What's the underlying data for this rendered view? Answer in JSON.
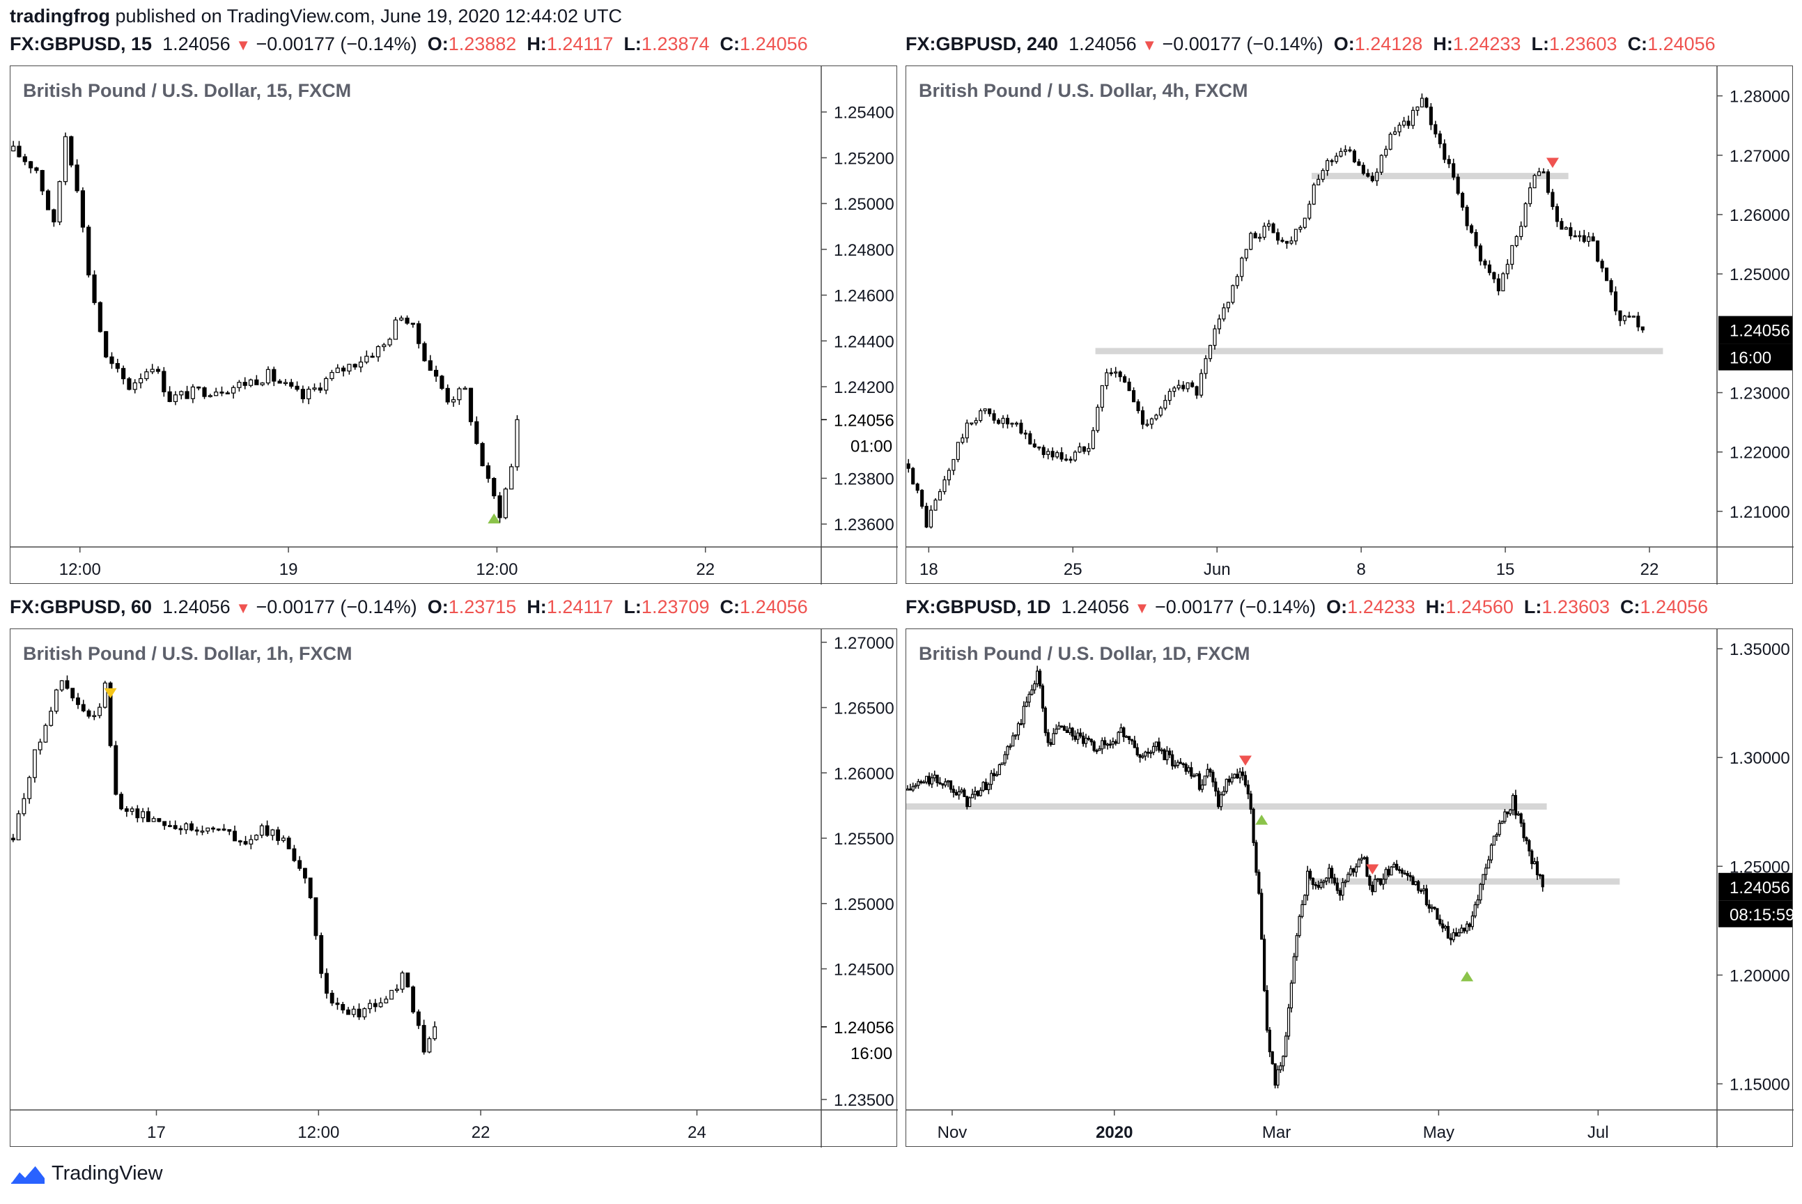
{
  "header": {
    "author": "tradingfrog",
    "published": "published on TradingView.com, June 19, 2020 12:44:02 UTC"
  },
  "footer": {
    "brand": "TradingView",
    "logo_icon": "tradingview-logo-icon"
  },
  "colors": {
    "bull": "#ffffff",
    "bear": "#000000",
    "wick": "#000000",
    "level": "#d6d6d6",
    "down_marker": "#ef5350",
    "up_marker": "#8bc34a",
    "neutral_marker": "#f5c518",
    "quote_red": "#ef5350"
  },
  "panels": [
    {
      "id": "p15",
      "quote": {
        "symbol": "FX:GBPUSD, 15",
        "last": "1.24056",
        "change": "−0.00177 (−0.14%)",
        "o_label": "O:",
        "o": "1.23882",
        "h_label": "H:",
        "h": "1.24117",
        "l_label": "L:",
        "l": "1.23874",
        "c_label": "C:",
        "c": "1.24056"
      },
      "title": "British Pound / U.S. Dollar, 15, FXCM",
      "price_label": "1.24056",
      "time_label": "01:00"
    },
    {
      "id": "p240",
      "quote": {
        "symbol": "FX:GBPUSD, 240",
        "last": "1.24056",
        "change": "−0.00177 (−0.14%)",
        "o_label": "O:",
        "o": "1.24128",
        "h_label": "H:",
        "h": "1.24233",
        "l_label": "L:",
        "l": "1.23603",
        "c_label": "C:",
        "c": "1.24056"
      },
      "title": "British Pound / U.S. Dollar, 4h, FXCM",
      "price_label": "1.24056",
      "time_label": "16:00"
    },
    {
      "id": "p60",
      "quote": {
        "symbol": "FX:GBPUSD, 60",
        "last": "1.24056",
        "change": "−0.00177 (−0.14%)",
        "o_label": "O:",
        "o": "1.23715",
        "h_label": "H:",
        "h": "1.24117",
        "l_label": "L:",
        "l": "1.23709",
        "c_label": "C:",
        "c": "1.24056"
      },
      "title": "British Pound / U.S. Dollar, 1h, FXCM",
      "price_label": "1.24056",
      "time_label": "16:00"
    },
    {
      "id": "p1d",
      "quote": {
        "symbol": "FX:GBPUSD, 1D",
        "last": "1.24056",
        "change": "−0.00177 (−0.14%)",
        "o_label": "O:",
        "o": "1.24233",
        "h_label": "H:",
        "h": "1.24560",
        "l_label": "L:",
        "l": "1.23603",
        "c_label": "C:",
        "c": "1.24056"
      },
      "title": "British Pound / U.S. Dollar, 1D, FXCM",
      "price_label": "1.24056",
      "time_label": "08:15:59"
    }
  ],
  "chart_data": [
    {
      "type": "candlestick",
      "title": "British Pound / U.S. Dollar, 15, FXCM",
      "ylim": [
        1.235,
        1.256
      ],
      "y_ticks": [
        1.254,
        1.252,
        1.25,
        1.248,
        1.246,
        1.244,
        1.242,
        1.238,
        1.236
      ],
      "y_tick_labels": [
        "1.25400",
        "1.25200",
        "1.25000",
        "1.24800",
        "1.24600",
        "1.24400",
        "1.24200",
        "1.23800",
        "1.23600"
      ],
      "x_range": [
        0,
        140
      ],
      "x_ticks": [
        {
          "x": 12,
          "label": "12:00"
        },
        {
          "x": 48,
          "label": "19"
        },
        {
          "x": 84,
          "label": "12:00"
        },
        {
          "x": 120,
          "label": "22"
        }
      ],
      "last_price": 1.24056,
      "path": [
        [
          0,
          1.2523
        ],
        [
          4,
          1.2515
        ],
        [
          7,
          1.249
        ],
        [
          9,
          1.253
        ],
        [
          11,
          1.2508
        ],
        [
          13,
          1.247
        ],
        [
          16,
          1.2432
        ],
        [
          20,
          1.242
        ],
        [
          24,
          1.243
        ],
        [
          27,
          1.2415
        ],
        [
          32,
          1.2418
        ],
        [
          38,
          1.242
        ],
        [
          44,
          1.2425
        ],
        [
          50,
          1.2415
        ],
        [
          55,
          1.2425
        ],
        [
          60,
          1.2432
        ],
        [
          64,
          1.2438
        ],
        [
          67,
          1.2452
        ],
        [
          69,
          1.2445
        ],
        [
          72,
          1.2428
        ],
        [
          75,
          1.2415
        ],
        [
          78,
          1.2418
        ],
        [
          80,
          1.2395
        ],
        [
          82,
          1.2378
        ],
        [
          84,
          1.2365
        ],
        [
          86,
          1.2385
        ],
        [
          87,
          1.2405
        ]
      ],
      "markers": [
        {
          "x": 83,
          "y": 1.2363,
          "dir": "up",
          "color": "#8bc34a"
        }
      ],
      "levels": []
    },
    {
      "type": "candlestick",
      "title": "British Pound / U.S. Dollar, 4h, FXCM",
      "ylim": [
        1.204,
        1.285
      ],
      "y_ticks": [
        1.28,
        1.27,
        1.26,
        1.25,
        1.23,
        1.22,
        1.21
      ],
      "y_tick_labels": [
        "1.28000",
        "1.27000",
        "1.26000",
        "1.25000",
        "1.23000",
        "1.22000",
        "1.21000"
      ],
      "x_range": [
        0,
        180
      ],
      "x_ticks": [
        {
          "x": 5,
          "label": "18"
        },
        {
          "x": 37,
          "label": "25"
        },
        {
          "x": 69,
          "label": "Jun"
        },
        {
          "x": 101,
          "label": "8"
        },
        {
          "x": 133,
          "label": "15"
        },
        {
          "x": 165,
          "label": "22"
        }
      ],
      "last_price": 1.24056,
      "path": [
        [
          0,
          1.218
        ],
        [
          4,
          1.208
        ],
        [
          8,
          1.215
        ],
        [
          12,
          1.223
        ],
        [
          16,
          1.227
        ],
        [
          20,
          1.2255
        ],
        [
          24,
          1.224
        ],
        [
          28,
          1.221
        ],
        [
          32,
          1.2195
        ],
        [
          36,
          1.219
        ],
        [
          40,
          1.2215
        ],
        [
          44,
          1.234
        ],
        [
          48,
          1.232
        ],
        [
          52,
          1.225
        ],
        [
          56,
          1.227
        ],
        [
          60,
          1.232
        ],
        [
          64,
          1.23
        ],
        [
          68,
          1.24
        ],
        [
          72,
          1.248
        ],
        [
          76,
          1.256
        ],
        [
          80,
          1.258
        ],
        [
          84,
          1.255
        ],
        [
          88,
          1.26
        ],
        [
          92,
          1.268
        ],
        [
          96,
          1.271
        ],
        [
          100,
          1.269
        ],
        [
          103,
          1.265
        ],
        [
          106,
          1.272
        ],
        [
          110,
          1.275
        ],
        [
          114,
          1.279
        ],
        [
          117,
          1.274
        ],
        [
          120,
          1.268
        ],
        [
          124,
          1.259
        ],
        [
          127,
          1.252
        ],
        [
          131,
          1.248
        ],
        [
          135,
          1.256
        ],
        [
          138,
          1.265
        ],
        [
          141,
          1.267
        ],
        [
          144,
          1.258
        ],
        [
          148,
          1.256
        ],
        [
          152,
          1.255
        ],
        [
          155,
          1.248
        ],
        [
          158,
          1.242
        ],
        [
          161,
          1.242
        ],
        [
          163,
          1.2406
        ]
      ],
      "markers": [
        {
          "x": 143,
          "y": 1.2685,
          "dir": "down",
          "color": "#ef5350"
        }
      ],
      "levels": [
        {
          "y": 1.2665,
          "x0": 90,
          "x1": 147
        },
        {
          "y": 1.237,
          "x0": 42,
          "x1": 168
        }
      ]
    },
    {
      "type": "candlestick",
      "title": "British Pound / U.S. Dollar, 1h, FXCM",
      "ylim": [
        1.2342,
        1.271
      ],
      "y_ticks": [
        1.27,
        1.265,
        1.26,
        1.255,
        1.25,
        1.245,
        1.235
      ],
      "y_tick_labels": [
        "1.27000",
        "1.26500",
        "1.26000",
        "1.25500",
        "1.25000",
        "1.24500",
        "1.23500"
      ],
      "x_range": [
        0,
        150
      ],
      "x_ticks": [
        {
          "x": 27,
          "label": "17"
        },
        {
          "x": 57,
          "label": "12:00"
        },
        {
          "x": 87,
          "label": "22"
        },
        {
          "x": 127,
          "label": "24"
        }
      ],
      "last_price": 1.24056,
      "path": [
        [
          0,
          1.255
        ],
        [
          3,
          1.26
        ],
        [
          6,
          1.264
        ],
        [
          9,
          1.267
        ],
        [
          12,
          1.265
        ],
        [
          15,
          1.264
        ],
        [
          17,
          1.2665
        ],
        [
          19,
          1.258
        ],
        [
          22,
          1.257
        ],
        [
          26,
          1.2565
        ],
        [
          30,
          1.256
        ],
        [
          34,
          1.2555
        ],
        [
          38,
          1.256
        ],
        [
          42,
          1.2545
        ],
        [
          46,
          1.2555
        ],
        [
          50,
          1.255
        ],
        [
          53,
          1.253
        ],
        [
          55,
          1.25
        ],
        [
          57,
          1.245
        ],
        [
          59,
          1.242
        ],
        [
          62,
          1.2415
        ],
        [
          66,
          1.242
        ],
        [
          70,
          1.243
        ],
        [
          72,
          1.2445
        ],
        [
          74,
          1.242
        ],
        [
          76,
          1.2385
        ],
        [
          77,
          1.2395
        ],
        [
          78,
          1.2406
        ]
      ],
      "markers": [
        {
          "x": 18,
          "y": 1.266,
          "dir": "down",
          "color": "#f5c518"
        }
      ],
      "levels": []
    },
    {
      "type": "candlestick",
      "title": "British Pound / U.S. Dollar, 1D, FXCM",
      "ylim": [
        1.138,
        1.359
      ],
      "y_ticks": [
        1.35,
        1.3,
        1.25,
        1.2,
        1.15
      ],
      "y_tick_labels": [
        "1.35000",
        "1.30000",
        "1.25000",
        "1.20000",
        "1.15000"
      ],
      "x_range": [
        0,
        300
      ],
      "x_ticks": [
        {
          "x": 17,
          "label": "Nov"
        },
        {
          "x": 77,
          "label": "2020",
          "bold": true
        },
        {
          "x": 137,
          "label": "Mar"
        },
        {
          "x": 197,
          "label": "May"
        },
        {
          "x": 256,
          "label": "Jul"
        }
      ],
      "last_price": 1.24056,
      "path": [
        [
          0,
          1.285
        ],
        [
          8,
          1.29
        ],
        [
          16,
          1.288
        ],
        [
          22,
          1.28
        ],
        [
          28,
          1.286
        ],
        [
          34,
          1.295
        ],
        [
          40,
          1.31
        ],
        [
          44,
          1.325
        ],
        [
          48,
          1.34
        ],
        [
          52,
          1.305
        ],
        [
          56,
          1.315
        ],
        [
          62,
          1.31
        ],
        [
          68,
          1.305
        ],
        [
          74,
          1.306
        ],
        [
          80,
          1.312
        ],
        [
          86,
          1.3
        ],
        [
          92,
          1.305
        ],
        [
          98,
          1.298
        ],
        [
          104,
          1.296
        ],
        [
          108,
          1.288
        ],
        [
          112,
          1.295
        ],
        [
          115,
          1.28
        ],
        [
          118,
          1.288
        ],
        [
          124,
          1.292
        ],
        [
          127,
          1.275
        ],
        [
          130,
          1.235
        ],
        [
          133,
          1.175
        ],
        [
          136,
          1.15
        ],
        [
          140,
          1.17
        ],
        [
          144,
          1.22
        ],
        [
          148,
          1.245
        ],
        [
          152,
          1.243
        ],
        [
          156,
          1.247
        ],
        [
          160,
          1.238
        ],
        [
          164,
          1.247
        ],
        [
          168,
          1.255
        ],
        [
          172,
          1.24
        ],
        [
          176,
          1.245
        ],
        [
          180,
          1.252
        ],
        [
          184,
          1.245
        ],
        [
          188,
          1.243
        ],
        [
          192,
          1.235
        ],
        [
          196,
          1.228
        ],
        [
          200,
          1.218
        ],
        [
          204,
          1.22
        ],
        [
          208,
          1.225
        ],
        [
          212,
          1.24
        ],
        [
          216,
          1.26
        ],
        [
          220,
          1.27
        ],
        [
          224,
          1.28
        ],
        [
          228,
          1.265
        ],
        [
          232,
          1.25
        ],
        [
          235,
          1.2406
        ]
      ],
      "markers": [
        {
          "x": 125,
          "y": 1.298,
          "dir": "down",
          "color": "#ef5350"
        },
        {
          "x": 131,
          "y": 1.272,
          "dir": "up",
          "color": "#8bc34a"
        },
        {
          "x": 172,
          "y": 1.248,
          "dir": "down",
          "color": "#ef5350"
        },
        {
          "x": 207,
          "y": 1.2,
          "dir": "up",
          "color": "#8bc34a"
        }
      ],
      "levels": [
        {
          "y": 1.2775,
          "x0": 0,
          "x1": 237
        },
        {
          "y": 1.243,
          "x0": 148,
          "x1": 264
        }
      ]
    }
  ]
}
